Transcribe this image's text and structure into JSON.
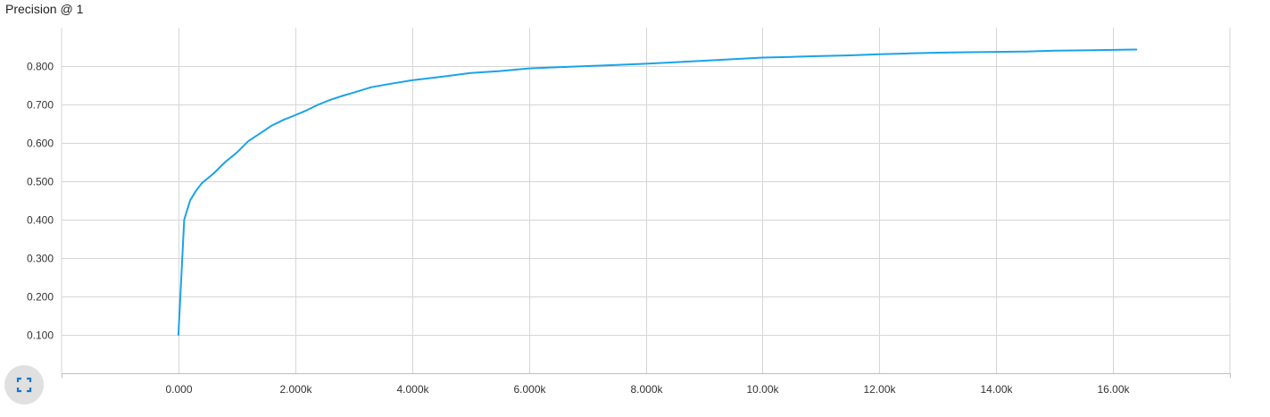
{
  "chart_data": {
    "type": "line",
    "title": "Precision @ 1",
    "xlabel": "",
    "ylabel": "",
    "xlim": [
      -2000,
      18000
    ],
    "ylim": [
      0,
      0.9
    ],
    "x_ticks": [
      {
        "value": 0,
        "label": "0.000"
      },
      {
        "value": 2000,
        "label": "2.000k"
      },
      {
        "value": 4000,
        "label": "4.000k"
      },
      {
        "value": 6000,
        "label": "6.000k"
      },
      {
        "value": 8000,
        "label": "8.000k"
      },
      {
        "value": 10000,
        "label": "10.00k"
      },
      {
        "value": 12000,
        "label": "12.00k"
      },
      {
        "value": 14000,
        "label": "14.00k"
      },
      {
        "value": 16000,
        "label": "16.00k"
      }
    ],
    "y_ticks": [
      {
        "value": 0.1,
        "label": "0.100"
      },
      {
        "value": 0.2,
        "label": "0.200"
      },
      {
        "value": 0.3,
        "label": "0.300"
      },
      {
        "value": 0.4,
        "label": "0.400"
      },
      {
        "value": 0.5,
        "label": "0.500"
      },
      {
        "value": 0.6,
        "label": "0.600"
      },
      {
        "value": 0.7,
        "label": "0.700"
      },
      {
        "value": 0.8,
        "label": "0.800"
      }
    ],
    "grid": true,
    "series": [
      {
        "name": "Precision @ 1",
        "color": "#1aa3e8",
        "x": [
          0,
          100,
          200,
          300,
          400,
          600,
          800,
          1000,
          1200,
          1400,
          1600,
          1800,
          2000,
          2200,
          2400,
          2600,
          2800,
          3000,
          3300,
          3600,
          4000,
          4500,
          5000,
          5500,
          6000,
          6500,
          7000,
          7500,
          8000,
          8500,
          9000,
          9500,
          10000,
          10500,
          11000,
          11500,
          12000,
          12500,
          13000,
          13500,
          14000,
          14500,
          15000,
          15500,
          16000,
          16400
        ],
        "values": [
          0.1,
          0.4,
          0.45,
          0.475,
          0.495,
          0.52,
          0.55,
          0.575,
          0.605,
          0.625,
          0.645,
          0.66,
          0.672,
          0.685,
          0.7,
          0.712,
          0.722,
          0.731,
          0.745,
          0.753,
          0.763,
          0.772,
          0.782,
          0.787,
          0.794,
          0.797,
          0.8,
          0.803,
          0.806,
          0.81,
          0.814,
          0.818,
          0.822,
          0.824,
          0.826,
          0.828,
          0.831,
          0.833,
          0.835,
          0.836,
          0.837,
          0.838,
          0.84,
          0.841,
          0.842,
          0.843
        ]
      }
    ]
  },
  "controls": {
    "fullscreen_icon": "fullscreen-icon",
    "fullscreen_icon_color": "#1976d2"
  }
}
